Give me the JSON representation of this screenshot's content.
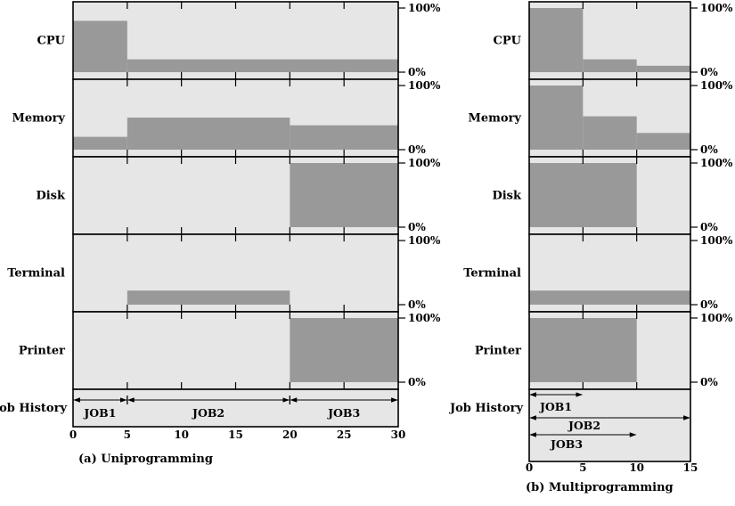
{
  "chart_data": [
    {
      "type": "area",
      "caption": "(a) Uniprogramming",
      "xlim": [
        0,
        30
      ],
      "xticks": [
        "0",
        "5",
        "10",
        "15",
        "20",
        "25",
        "30"
      ],
      "xtick_values": [
        0,
        5,
        10,
        15,
        20,
        25,
        30
      ],
      "ylim": [
        0,
        100
      ],
      "y_top_label": "100%",
      "y_bottom_label": "0%",
      "series": [
        {
          "name": "CPU",
          "steps": [
            {
              "x0": 0,
              "x1": 5,
              "y": 80
            },
            {
              "x0": 5,
              "x1": 30,
              "y": 20
            }
          ]
        },
        {
          "name": "Memory",
          "steps": [
            {
              "x0": 0,
              "x1": 5,
              "y": 20
            },
            {
              "x0": 5,
              "x1": 20,
              "y": 50
            },
            {
              "x0": 20,
              "x1": 30,
              "y": 38
            }
          ]
        },
        {
          "name": "Disk",
          "steps": [
            {
              "x0": 20,
              "x1": 30,
              "y": 100
            }
          ]
        },
        {
          "name": "Terminal",
          "steps": [
            {
              "x0": 5,
              "x1": 20,
              "y": 22
            }
          ]
        },
        {
          "name": "Printer",
          "steps": [
            {
              "x0": 20,
              "x1": 30,
              "y": 100
            }
          ]
        }
      ],
      "job_history_label": "Job History",
      "jobs": [
        {
          "name": "JOB1",
          "start": 0,
          "end": 5
        },
        {
          "name": "JOB2",
          "start": 5,
          "end": 20
        },
        {
          "name": "JOB3",
          "start": 20,
          "end": 30
        }
      ]
    },
    {
      "type": "area",
      "caption": "(b) Multiprogramming",
      "xlim": [
        0,
        15
      ],
      "xticks": [
        "0",
        "5",
        "10",
        "15"
      ],
      "xtick_values": [
        0,
        5,
        10,
        15
      ],
      "ylim": [
        0,
        100
      ],
      "y_top_label": "100%",
      "y_bottom_label": "0%",
      "series": [
        {
          "name": "CPU",
          "steps": [
            {
              "x0": 0,
              "x1": 5,
              "y": 100
            },
            {
              "x0": 5,
              "x1": 10,
              "y": 20
            },
            {
              "x0": 10,
              "x1": 15,
              "y": 10
            }
          ]
        },
        {
          "name": "Memory",
          "steps": [
            {
              "x0": 0,
              "x1": 5,
              "y": 100
            },
            {
              "x0": 5,
              "x1": 10,
              "y": 52
            },
            {
              "x0": 10,
              "x1": 15,
              "y": 26
            }
          ]
        },
        {
          "name": "Disk",
          "steps": [
            {
              "x0": 0,
              "x1": 10,
              "y": 100
            }
          ]
        },
        {
          "name": "Terminal",
          "steps": [
            {
              "x0": 0,
              "x1": 15,
              "y": 22
            }
          ]
        },
        {
          "name": "Printer",
          "steps": [
            {
              "x0": 0,
              "x1": 10,
              "y": 100
            }
          ]
        }
      ],
      "job_history_label": "Job History",
      "jobs": [
        {
          "name": "JOB1",
          "start": 0,
          "end": 5
        },
        {
          "name": "JOB2",
          "start": 0,
          "end": 15
        },
        {
          "name": "JOB3",
          "start": 0,
          "end": 10
        }
      ]
    }
  ]
}
